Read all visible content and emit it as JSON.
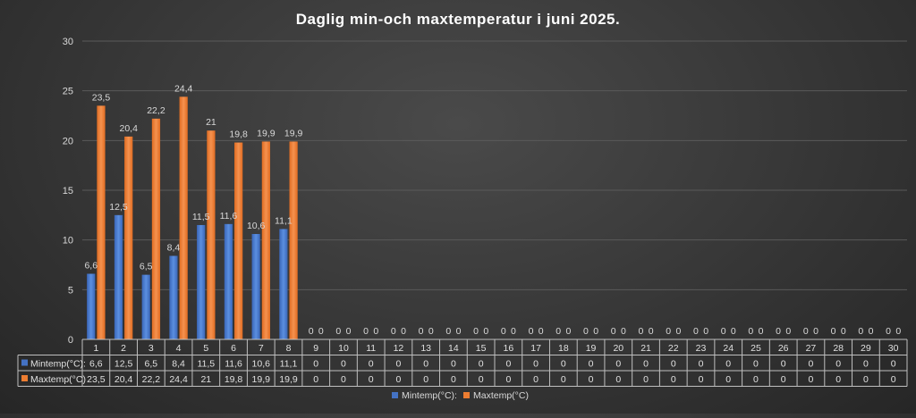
{
  "chart_data": {
    "type": "bar",
    "title": "Daglig min-och maxtemperatur i juni 2025.",
    "categories": [
      "1",
      "2",
      "3",
      "4",
      "5",
      "6",
      "7",
      "8",
      "9",
      "10",
      "11",
      "12",
      "13",
      "14",
      "15",
      "16",
      "17",
      "18",
      "19",
      "20",
      "21",
      "22",
      "23",
      "24",
      "25",
      "26",
      "27",
      "28",
      "29",
      "30"
    ],
    "series": [
      {
        "name": "Mintemp(°C):",
        "color": "#4472c4",
        "values": [
          6.6,
          12.5,
          6.5,
          8.4,
          11.5,
          11.6,
          10.6,
          11.1,
          0,
          0,
          0,
          0,
          0,
          0,
          0,
          0,
          0,
          0,
          0,
          0,
          0,
          0,
          0,
          0,
          0,
          0,
          0,
          0,
          0,
          0
        ],
        "labels": [
          "6,6",
          "12,5",
          "6,5",
          "8,4",
          "11,5",
          "11,6",
          "10,6",
          "11,1",
          "0",
          "0",
          "0",
          "0",
          "0",
          "0",
          "0",
          "0",
          "0",
          "0",
          "0",
          "0",
          "0",
          "0",
          "0",
          "0",
          "0",
          "0",
          "0",
          "0",
          "0",
          "0"
        ]
      },
      {
        "name": "Maxtemp(°C)",
        "color": "#ed7d31",
        "values": [
          23.5,
          20.4,
          22.2,
          24.4,
          21,
          19.8,
          19.9,
          19.9,
          0,
          0,
          0,
          0,
          0,
          0,
          0,
          0,
          0,
          0,
          0,
          0,
          0,
          0,
          0,
          0,
          0,
          0,
          0,
          0,
          0,
          0
        ],
        "labels": [
          "23,5",
          "20,4",
          "22,2",
          "24,4",
          "21",
          "19,8",
          "19,9",
          "19,9",
          "0",
          "0",
          "0",
          "0",
          "0",
          "0",
          "0",
          "0",
          "0",
          "0",
          "0",
          "0",
          "0",
          "0",
          "0",
          "0",
          "0",
          "0",
          "0",
          "0",
          "0",
          "0"
        ]
      }
    ],
    "ylim": [
      0,
      30
    ],
    "yticks": [
      "0",
      "5",
      "10",
      "15",
      "20",
      "25",
      "30"
    ],
    "grid": true,
    "data_table": true,
    "legend": "bottom-center"
  }
}
